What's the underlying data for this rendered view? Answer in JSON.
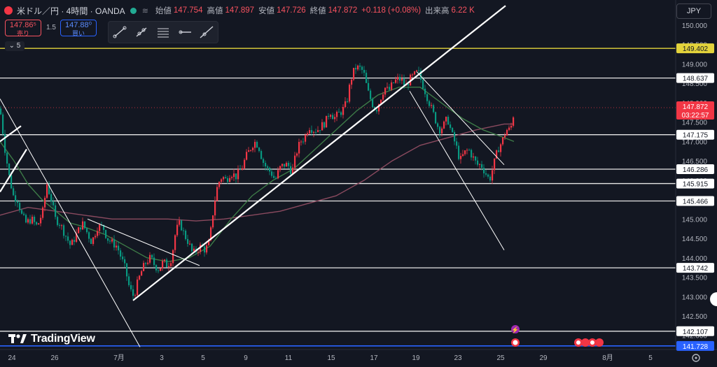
{
  "header": {
    "symbol": "米ドル／円 · 4時間 · OANDA",
    "open_label": "始値",
    "open": "147.754",
    "high_label": "高値",
    "high": "147.897",
    "low_label": "安値",
    "low": "147.726",
    "close_label": "終値",
    "close": "147.872",
    "change": "+0.118 (+0.08%)",
    "volume_label": "出来高",
    "volume": "6.22 K"
  },
  "trade": {
    "sell_price": "147.86⁵",
    "sell_label": "売り",
    "buy_price": "147.88⁰",
    "buy_label": "買い",
    "spread": "1.5"
  },
  "indicator_count": "5",
  "currency": "JPY",
  "brand": "TradingView",
  "colors": {
    "background": "#131722",
    "up": "#f23645",
    "down": "#089981",
    "ma_short": "#3d7a47",
    "ma_long": "#8a4a5f",
    "yellow_line": "#e3d33b",
    "blue_line": "#2962ff",
    "price_label": "#f23645"
  },
  "chart_data": {
    "type": "candlestick",
    "title": "米ドル／円 4時間",
    "ylim": [
      141.5,
      150.5
    ],
    "y_ticks": [
      "150.000",
      "149.500",
      "149.000",
      "148.500",
      "148.000",
      "147.500",
      "147.000",
      "146.500",
      "146.000",
      "145.500",
      "145.000",
      "144.500",
      "144.000",
      "143.500",
      "143.000",
      "142.500",
      "142.000"
    ],
    "x_ticks": [
      "24",
      "26",
      "7月",
      "3",
      "5",
      "9",
      "11",
      "15",
      "17",
      "19",
      "23",
      "25",
      "29",
      "8月",
      "5"
    ],
    "grid": false,
    "horizontal_levels": [
      {
        "value": 149.402,
        "label": "149.402",
        "style": "yellow"
      },
      {
        "value": 148.637,
        "label": "148.637",
        "style": "white"
      },
      {
        "value": 147.175,
        "label": "147.175",
        "style": "white"
      },
      {
        "value": 146.286,
        "label": "146.286",
        "style": "white"
      },
      {
        "value": 145.915,
        "label": "145.915",
        "style": "white"
      },
      {
        "value": 145.466,
        "label": "145.466",
        "style": "white"
      },
      {
        "value": 143.742,
        "label": "143.742",
        "style": "white"
      },
      {
        "value": 142.107,
        "label": "142.107",
        "style": "white"
      },
      {
        "value": 141.728,
        "label": "141.728",
        "style": "blue"
      }
    ],
    "current_price": {
      "value": 147.872,
      "label": "147.872",
      "countdown": "03:22:57"
    },
    "close_path": [
      [
        0,
        147.7
      ],
      [
        6,
        146.8
      ],
      [
        12,
        146.1
      ],
      [
        18,
        145.6
      ],
      [
        24,
        145.5
      ],
      [
        30,
        145.1
      ],
      [
        36,
        144.9
      ],
      [
        44,
        145.0
      ],
      [
        52,
        144.8
      ],
      [
        60,
        145.2
      ],
      [
        66,
        145.9
      ],
      [
        72,
        145.5
      ],
      [
        78,
        145.0
      ],
      [
        84,
        144.9
      ],
      [
        92,
        144.6
      ],
      [
        100,
        144.3
      ],
      [
        108,
        144.6
      ],
      [
        116,
        144.9
      ],
      [
        122,
        144.7
      ],
      [
        130,
        144.4
      ],
      [
        138,
        144.8
      ],
      [
        146,
        144.8
      ],
      [
        152,
        144.5
      ],
      [
        158,
        144.4
      ],
      [
        166,
        144.3
      ],
      [
        172,
        144.0
      ],
      [
        178,
        143.7
      ],
      [
        184,
        143.2
      ],
      [
        190,
        143.0
      ],
      [
        196,
        143.4
      ],
      [
        202,
        143.7
      ],
      [
        208,
        143.9
      ],
      [
        214,
        144.0
      ],
      [
        220,
        143.8
      ],
      [
        226,
        143.7
      ],
      [
        232,
        143.9
      ],
      [
        238,
        143.8
      ],
      [
        244,
        144.0
      ],
      [
        250,
        144.7
      ],
      [
        256,
        144.9
      ],
      [
        262,
        144.6
      ],
      [
        268,
        144.4
      ],
      [
        274,
        144.1
      ],
      [
        280,
        144.2
      ],
      [
        286,
        144.3
      ],
      [
        292,
        144.2
      ],
      [
        298,
        144.4
      ],
      [
        304,
        145.3
      ],
      [
        310,
        145.9
      ],
      [
        316,
        146.1
      ],
      [
        322,
        146.0
      ],
      [
        328,
        146.2
      ],
      [
        336,
        146.1
      ],
      [
        344,
        146.3
      ],
      [
        350,
        146.6
      ],
      [
        356,
        146.8
      ],
      [
        362,
        147.0
      ],
      [
        368,
        146.9
      ],
      [
        374,
        146.5
      ],
      [
        380,
        146.3
      ],
      [
        386,
        146.2
      ],
      [
        392,
        146.0
      ],
      [
        398,
        146.3
      ],
      [
        404,
        146.4
      ],
      [
        410,
        146.4
      ],
      [
        416,
        146.2
      ],
      [
        422,
        146.7
      ],
      [
        428,
        147.0
      ],
      [
        434,
        147.1
      ],
      [
        440,
        147.4
      ],
      [
        446,
        147.3
      ],
      [
        452,
        147.3
      ],
      [
        458,
        147.4
      ],
      [
        464,
        147.5
      ],
      [
        470,
        147.8
      ],
      [
        476,
        147.6
      ],
      [
        482,
        147.7
      ],
      [
        488,
        147.8
      ],
      [
        494,
        148.0
      ],
      [
        500,
        148.6
      ],
      [
        506,
        148.9
      ],
      [
        512,
        148.9
      ],
      [
        518,
        148.8
      ],
      [
        524,
        148.3
      ],
      [
        530,
        148.0
      ],
      [
        536,
        147.8
      ],
      [
        542,
        148.1
      ],
      [
        548,
        148.4
      ],
      [
        554,
        148.3
      ],
      [
        560,
        148.5
      ],
      [
        566,
        148.6
      ],
      [
        572,
        148.6
      ],
      [
        578,
        148.4
      ],
      [
        584,
        148.6
      ],
      [
        590,
        148.7
      ],
      [
        596,
        148.8
      ],
      [
        602,
        148.5
      ],
      [
        608,
        148.2
      ],
      [
        614,
        147.9
      ],
      [
        620,
        147.6
      ],
      [
        626,
        147.3
      ],
      [
        632,
        147.4
      ],
      [
        638,
        147.6
      ],
      [
        644,
        147.2
      ],
      [
        650,
        146.9
      ],
      [
        656,
        146.5
      ],
      [
        662,
        146.7
      ],
      [
        668,
        146.8
      ],
      [
        674,
        146.6
      ],
      [
        680,
        146.4
      ],
      [
        686,
        146.4
      ],
      [
        692,
        146.2
      ],
      [
        698,
        146.0
      ],
      [
        704,
        146.4
      ],
      [
        710,
        146.8
      ],
      [
        716,
        147.0
      ],
      [
        722,
        147.3
      ],
      [
        728,
        147.3
      ],
      [
        734,
        147.87
      ]
    ],
    "ma_short_path": [
      [
        0,
        147.0
      ],
      [
        20,
        146.5
      ],
      [
        40,
        145.9
      ],
      [
        60,
        145.5
      ],
      [
        80,
        145.2
      ],
      [
        100,
        144.9
      ],
      [
        120,
        144.8
      ],
      [
        150,
        144.6
      ],
      [
        180,
        144.3
      ],
      [
        210,
        144.0
      ],
      [
        240,
        143.9
      ],
      [
        270,
        144.0
      ],
      [
        300,
        144.3
      ],
      [
        330,
        145.0
      ],
      [
        360,
        145.6
      ],
      [
        390,
        146.0
      ],
      [
        420,
        146.3
      ],
      [
        450,
        146.8
      ],
      [
        480,
        147.3
      ],
      [
        510,
        147.8
      ],
      [
        540,
        148.2
      ],
      [
        570,
        148.4
      ],
      [
        600,
        148.4
      ],
      [
        630,
        148.0
      ],
      [
        660,
        147.6
      ],
      [
        690,
        147.3
      ],
      [
        720,
        147.1
      ],
      [
        734,
        147.0
      ]
    ],
    "ma_long_path": [
      [
        0,
        145.1
      ],
      [
        40,
        145.3
      ],
      [
        80,
        145.2
      ],
      [
        120,
        145.1
      ],
      [
        160,
        145.0
      ],
      [
        200,
        145.0
      ],
      [
        240,
        145.0
      ],
      [
        280,
        144.95
      ],
      [
        320,
        145.0
      ],
      [
        360,
        145.1
      ],
      [
        400,
        145.2
      ],
      [
        440,
        145.4
      ],
      [
        480,
        145.6
      ],
      [
        520,
        146.0
      ],
      [
        560,
        146.5
      ],
      [
        600,
        146.9
      ],
      [
        640,
        147.1
      ],
      [
        680,
        147.3
      ],
      [
        720,
        147.45
      ],
      [
        734,
        147.45
      ]
    ],
    "trendlines": [
      {
        "from": [
          190,
          142.9
        ],
        "to": [
          722,
          150.5
        ],
        "weight": "bold"
      },
      {
        "from": [
          0,
          145.7
        ],
        "to": [
          38,
          146.8
        ],
        "weight": "bold"
      },
      {
        "from": [
          0,
          147.0
        ],
        "to": [
          30,
          147.4
        ],
        "weight": "bold"
      },
      {
        "from": [
          0,
          148.1
        ],
        "to": [
          200,
          141.7
        ],
        "weight": "thin"
      },
      {
        "from": [
          125,
          145.0
        ],
        "to": [
          285,
          143.8
        ],
        "weight": "thin"
      },
      {
        "from": [
          585,
          148.3
        ],
        "to": [
          720,
          144.2
        ],
        "weight": "thin"
      },
      {
        "from": [
          595,
          148.8
        ],
        "to": [
          720,
          146.4
        ],
        "weight": "thin"
      }
    ]
  }
}
